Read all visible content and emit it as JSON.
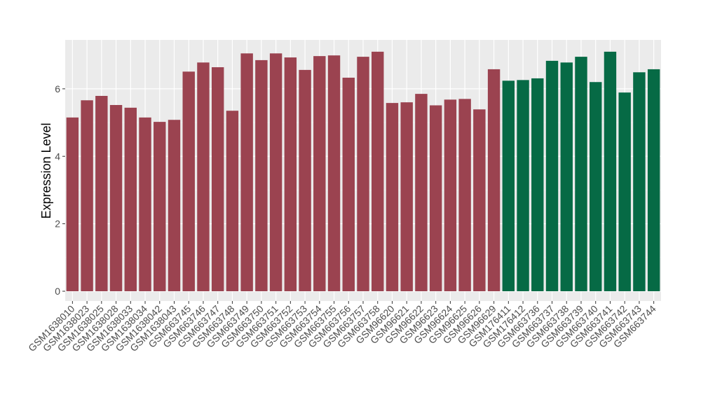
{
  "chart_data": {
    "type": "bar",
    "y_label": "Expression Level",
    "categories": [
      "GSM1638010",
      "GSM1638023",
      "GSM1638025",
      "GSM1638028",
      "GSM1638033",
      "GSM1638034",
      "GSM1638042",
      "GSM1638043",
      "GSM663745",
      "GSM663746",
      "GSM663747",
      "GSM663748",
      "GSM663749",
      "GSM663750",
      "GSM663751",
      "GSM663752",
      "GSM663753",
      "GSM663754",
      "GSM663755",
      "GSM663756",
      "GSM663757",
      "GSM663758",
      "GSM96620",
      "GSM96621",
      "GSM96622",
      "GSM96623",
      "GSM96624",
      "GSM96625",
      "GSM96626",
      "GSM96629",
      "GSM176411",
      "GSM176412",
      "GSM663736",
      "GSM663737",
      "GSM663738",
      "GSM663739",
      "GSM663740",
      "GSM663741",
      "GSM663742",
      "GSM663743",
      "GSM663744"
    ],
    "values": [
      5.15,
      5.66,
      5.79,
      5.52,
      5.44,
      5.15,
      5.02,
      5.08,
      6.51,
      6.78,
      6.64,
      5.35,
      7.05,
      6.85,
      7.05,
      6.93,
      6.56,
      6.97,
      6.99,
      6.33,
      6.95,
      7.1,
      5.58,
      5.6,
      5.85,
      5.51,
      5.68,
      5.7,
      5.39,
      6.58,
      6.24,
      6.26,
      6.31,
      6.83,
      6.78,
      6.95,
      6.2,
      7.1,
      5.89,
      6.49,
      6.58
    ],
    "colors": [
      "#9b4350",
      "#9b4350",
      "#9b4350",
      "#9b4350",
      "#9b4350",
      "#9b4350",
      "#9b4350",
      "#9b4350",
      "#9b4350",
      "#9b4350",
      "#9b4350",
      "#9b4350",
      "#9b4350",
      "#9b4350",
      "#9b4350",
      "#9b4350",
      "#9b4350",
      "#9b4350",
      "#9b4350",
      "#9b4350",
      "#9b4350",
      "#9b4350",
      "#9b4350",
      "#9b4350",
      "#9b4350",
      "#9b4350",
      "#9b4350",
      "#9b4350",
      "#9b4350",
      "#9b4350",
      "#066a45",
      "#066a45",
      "#066a45",
      "#066a45",
      "#066a45",
      "#066a45",
      "#066a45",
      "#066a45",
      "#066a45",
      "#066a45",
      "#066a45"
    ],
    "ylim": [
      -0.29,
      7.45
    ],
    "yticks": [
      0,
      2,
      4,
      6
    ],
    "grid": true
  }
}
